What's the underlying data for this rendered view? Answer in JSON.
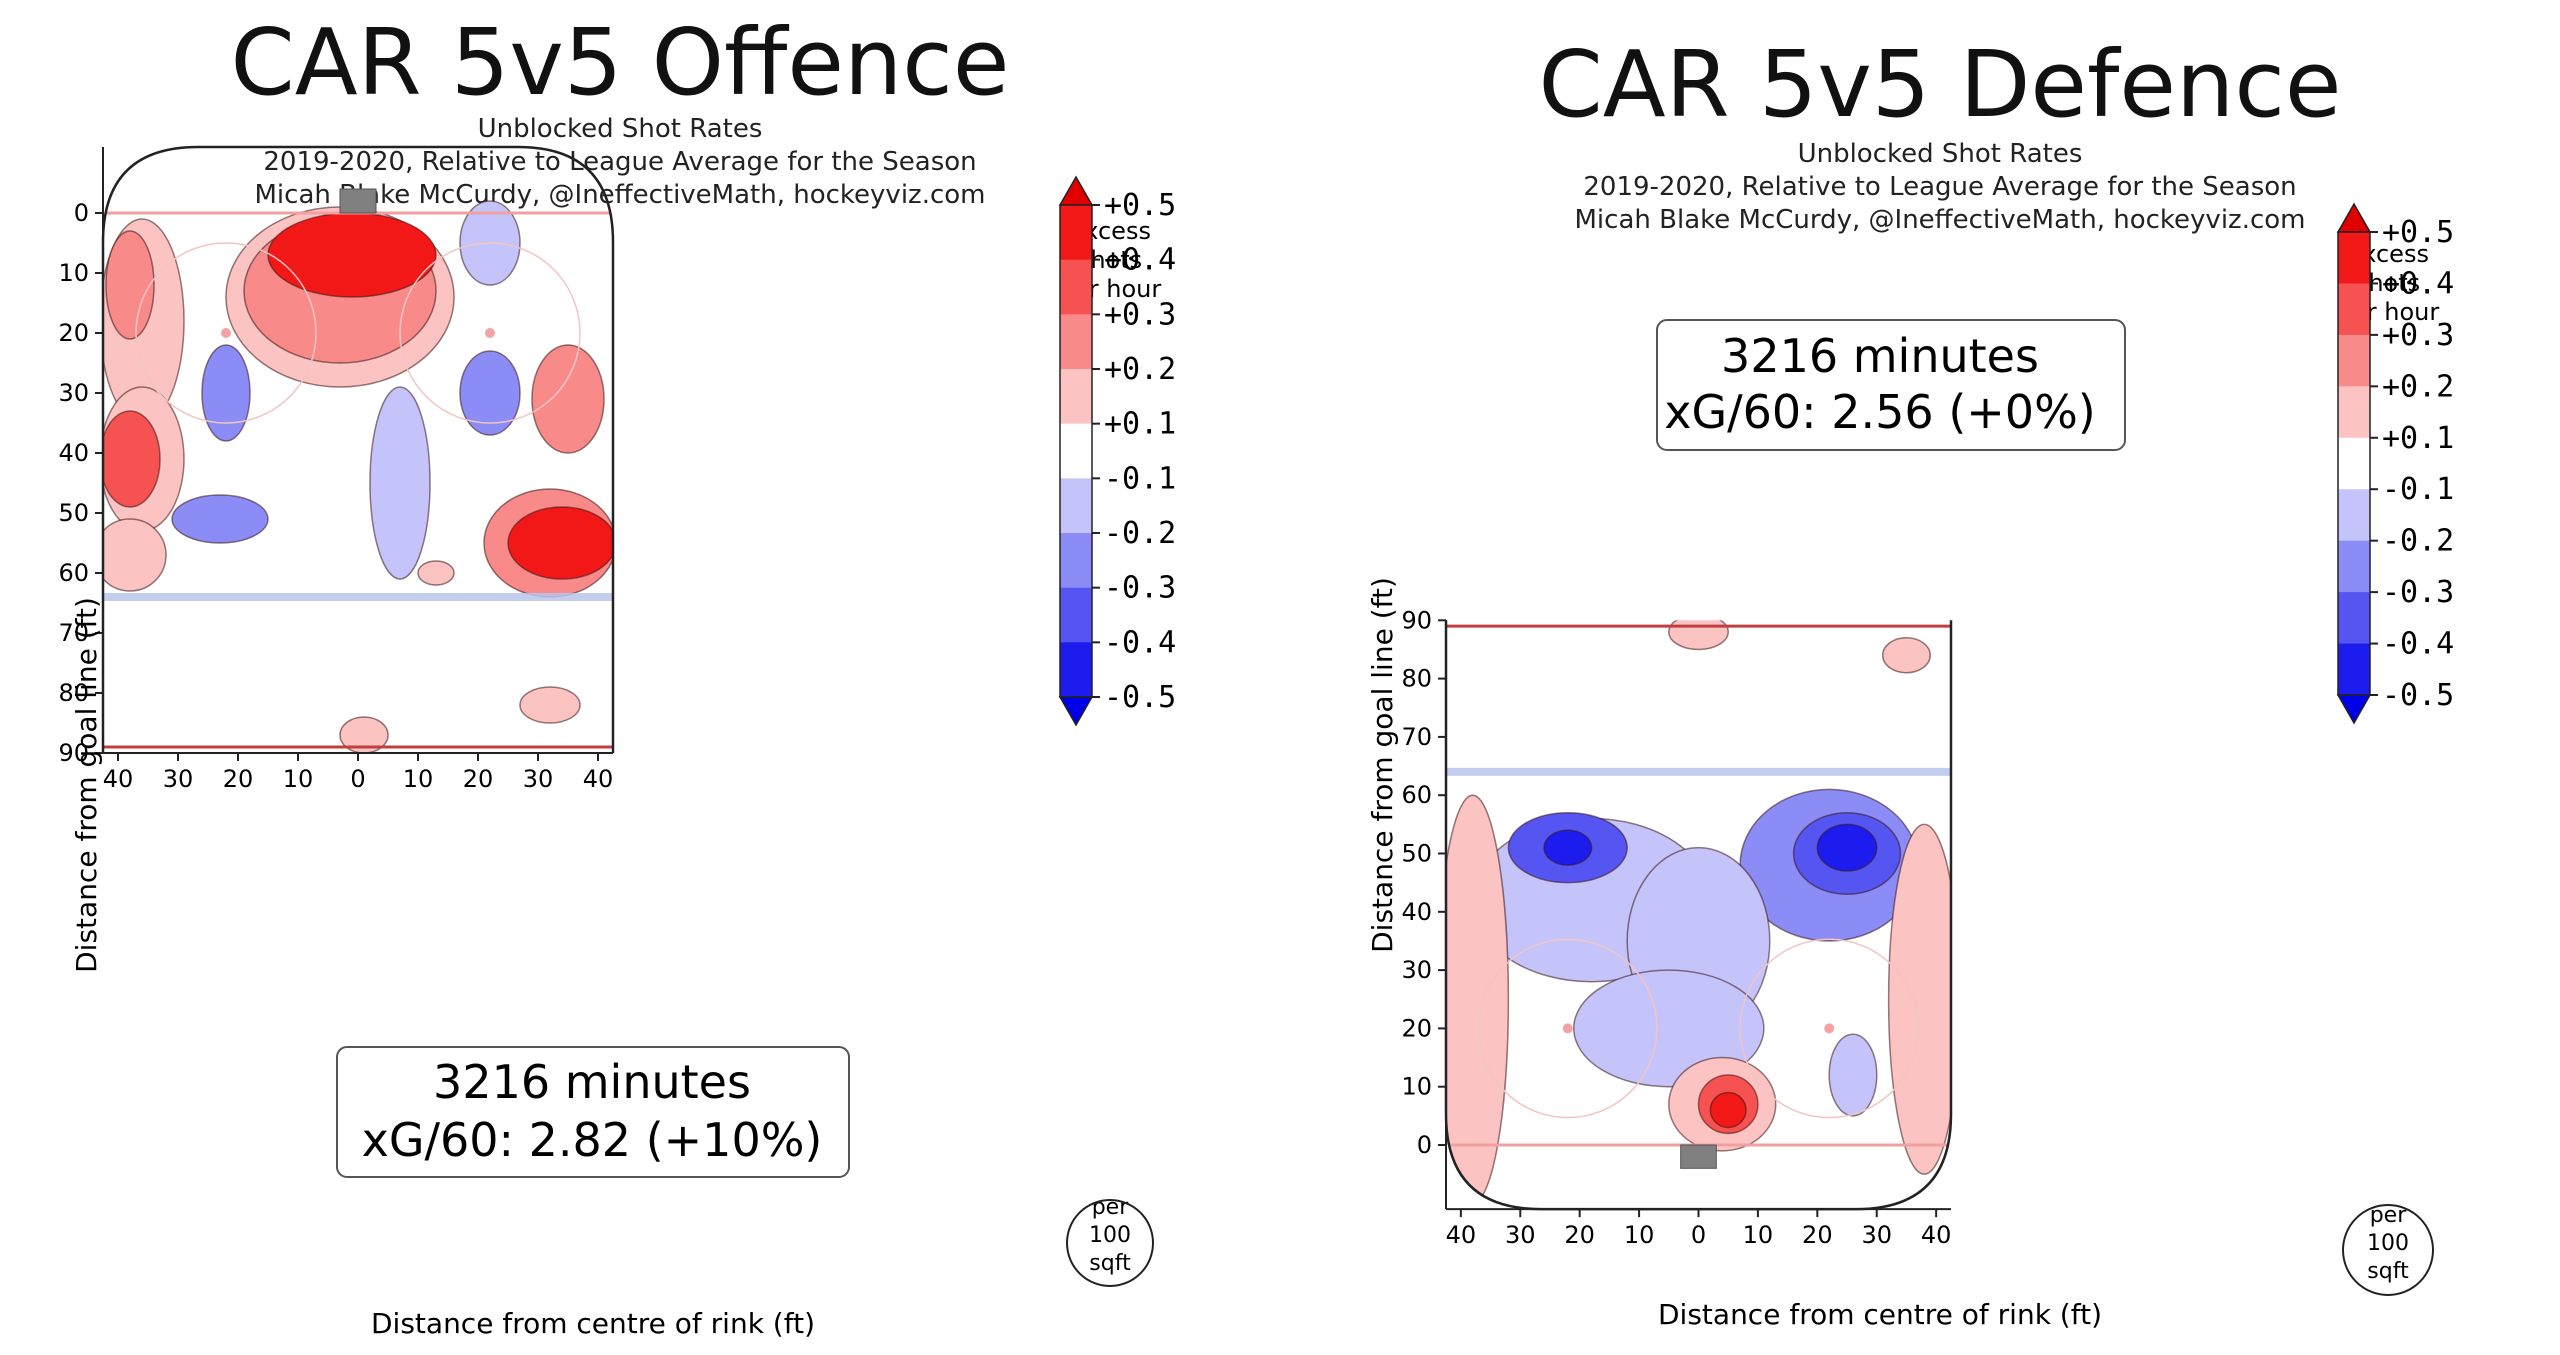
{
  "chart_data": [
    {
      "type": "heatmap",
      "title": "CAR 5v5 Offence",
      "subtitle_lines": [
        "Unblocked Shot Rates",
        "2019-2020, Relative to League Average for the Season",
        "Micah Blake McCurdy, @IneffectiveMath, hockeyviz.com"
      ],
      "xlabel": "Distance from centre of rink (ft)",
      "ylabel": "Distance from goal line (ft)",
      "x_ticks": [
        "40",
        "30",
        "20",
        "10",
        "0",
        "10",
        "20",
        "30",
        "40"
      ],
      "y_ticks": [
        "0",
        "10",
        "20",
        "30",
        "40",
        "50",
        "60",
        "70",
        "80",
        "90"
      ],
      "xlim": [
        -42.5,
        42.5
      ],
      "ylim": [
        90,
        -11
      ],
      "y_axis_inverted": true,
      "info_box": [
        "3216 minutes",
        "xG/60: 2.82 (+10%)"
      ],
      "colorbar_label": [
        "Excess",
        "shots",
        "per hour"
      ],
      "colorbar_ticks": [
        "+0.5",
        "+0.4",
        "+0.3",
        "+0.2",
        "+0.1",
        "-0.1",
        "-0.2",
        "-0.3",
        "-0.4",
        "-0.5"
      ],
      "unit_badge": [
        "per",
        "100",
        "sqft"
      ],
      "regions": [
        {
          "x": -1,
          "y": 7,
          "rx": 14,
          "ry": 7,
          "value": 0.45
        },
        {
          "x": -3,
          "y": 13,
          "rx": 16,
          "ry": 12,
          "value": 0.25
        },
        {
          "x": -3,
          "y": 14,
          "rx": 19,
          "ry": 15,
          "value": 0.12
        },
        {
          "x": 22,
          "y": 5,
          "rx": 5,
          "ry": 7,
          "value": -0.15
        },
        {
          "x": -38,
          "y": 12,
          "rx": 4,
          "ry": 9,
          "value": 0.22
        },
        {
          "x": -36,
          "y": 18,
          "rx": 7,
          "ry": 17,
          "value": 0.12
        },
        {
          "x": -38,
          "y": 41,
          "rx": 5,
          "ry": 8,
          "value": 0.32
        },
        {
          "x": -36,
          "y": 41,
          "rx": 7,
          "ry": 12,
          "value": 0.15
        },
        {
          "x": -22,
          "y": 30,
          "rx": 4,
          "ry": 8,
          "value": -0.2
        },
        {
          "x": -23,
          "y": 51,
          "rx": 8,
          "ry": 4,
          "value": -0.22
        },
        {
          "x": 7,
          "y": 45,
          "rx": 5,
          "ry": 16,
          "value": -0.15
        },
        {
          "x": 22,
          "y": 30,
          "rx": 5,
          "ry": 7,
          "value": -0.2
        },
        {
          "x": 35,
          "y": 31,
          "rx": 6,
          "ry": 9,
          "value": 0.22
        },
        {
          "x": 34,
          "y": 55,
          "rx": 9,
          "ry": 6,
          "value": 0.45
        },
        {
          "x": 32,
          "y": 55,
          "rx": 11,
          "ry": 9,
          "value": 0.2
        },
        {
          "x": -38,
          "y": 57,
          "rx": 6,
          "ry": 6,
          "value": 0.15
        },
        {
          "x": 13,
          "y": 60,
          "rx": 3,
          "ry": 2,
          "value": 0.15
        },
        {
          "x": 32,
          "y": 82,
          "rx": 5,
          "ry": 3,
          "value": 0.15
        },
        {
          "x": 1,
          "y": 87,
          "rx": 4,
          "ry": 3,
          "value": 0.15
        }
      ]
    },
    {
      "type": "heatmap",
      "title": "CAR 5v5 Defence",
      "subtitle_lines": [
        "Unblocked Shot Rates",
        "2019-2020, Relative to League Average for the Season",
        "Micah Blake McCurdy, @IneffectiveMath, hockeyviz.com"
      ],
      "xlabel": "Distance from centre of rink (ft)",
      "ylabel": "Distance from goal line (ft)",
      "x_ticks": [
        "40",
        "30",
        "20",
        "10",
        "0",
        "10",
        "20",
        "30",
        "40"
      ],
      "y_ticks": [
        "0",
        "10",
        "20",
        "30",
        "40",
        "50",
        "60",
        "70",
        "80",
        "90"
      ],
      "xlim": [
        -42.5,
        42.5
      ],
      "ylim": [
        -11,
        90
      ],
      "y_axis_inverted": false,
      "info_box": [
        "3216 minutes",
        "xG/60: 2.56 (+0%)"
      ],
      "colorbar_label": [
        "Excess",
        "shots",
        "per hour"
      ],
      "colorbar_ticks": [
        "+0.5",
        "+0.4",
        "+0.3",
        "+0.2",
        "+0.1",
        "-0.1",
        "-0.2",
        "-0.3",
        "-0.4",
        "-0.5"
      ],
      "unit_badge": [
        "per",
        "100",
        "sqft"
      ],
      "regions": [
        {
          "x": -18,
          "y": 42,
          "rx": 20,
          "ry": 14,
          "value": -0.15
        },
        {
          "x": -22,
          "y": 51,
          "rx": 10,
          "ry": 6,
          "value": -0.3
        },
        {
          "x": -22,
          "y": 51,
          "rx": 4,
          "ry": 3,
          "value": -0.4
        },
        {
          "x": 22,
          "y": 48,
          "rx": 15,
          "ry": 13,
          "value": -0.2
        },
        {
          "x": 25,
          "y": 50,
          "rx": 9,
          "ry": 7,
          "value": -0.35
        },
        {
          "x": 25,
          "y": 51,
          "rx": 5,
          "ry": 4,
          "value": -0.45
        },
        {
          "x": 0,
          "y": 35,
          "rx": 12,
          "ry": 16,
          "value": -0.12
        },
        {
          "x": -5,
          "y": 20,
          "rx": 16,
          "ry": 10,
          "value": -0.12
        },
        {
          "x": 4,
          "y": 7,
          "rx": 9,
          "ry": 8,
          "value": 0.15
        },
        {
          "x": 5,
          "y": 7,
          "rx": 5,
          "ry": 5,
          "value": 0.3
        },
        {
          "x": 5,
          "y": 6,
          "rx": 3,
          "ry": 3,
          "value": 0.45
        },
        {
          "x": -38,
          "y": 25,
          "rx": 6,
          "ry": 35,
          "value": 0.12
        },
        {
          "x": 38,
          "y": 25,
          "rx": 6,
          "ry": 30,
          "value": 0.12
        },
        {
          "x": 0,
          "y": 88,
          "rx": 5,
          "ry": 3,
          "value": 0.15
        },
        {
          "x": 35,
          "y": 84,
          "rx": 4,
          "ry": 3,
          "value": 0.15
        },
        {
          "x": 26,
          "y": 12,
          "rx": 4,
          "ry": 7,
          "value": -0.15
        }
      ]
    }
  ]
}
